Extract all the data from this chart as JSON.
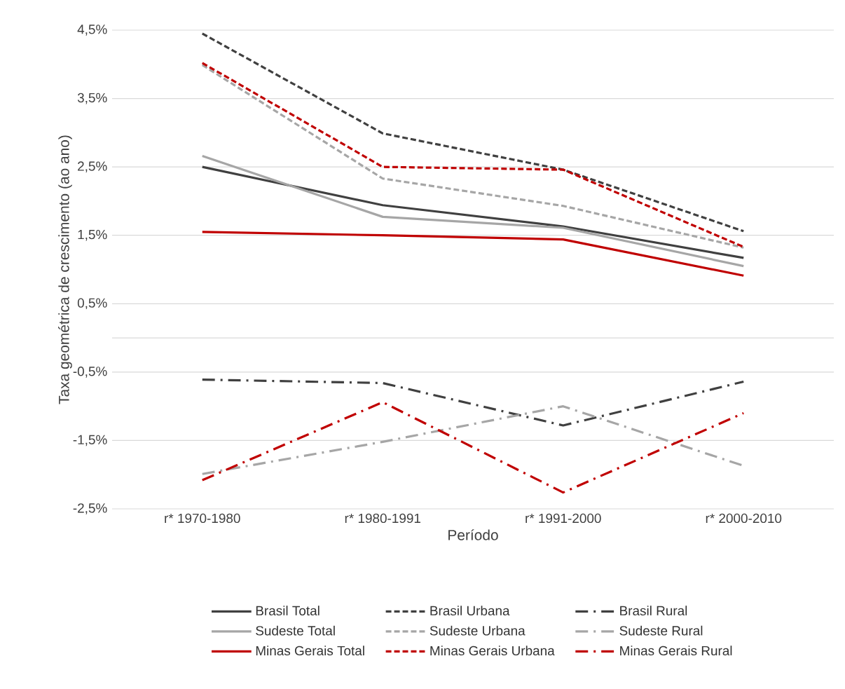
{
  "chart_data": {
    "type": "line",
    "xlabel": "Período",
    "ylabel": "Taxa geométrica de crescimento (ao ano)",
    "categories": [
      "r* 1970-1980",
      "r* 1980-1991",
      "r* 1991-2000",
      "r* 2000-2010"
    ],
    "ylim": [
      -2.5,
      4.5
    ],
    "yticks": [
      {
        "value": -2.5,
        "label": "-2,5%"
      },
      {
        "value": -1.5,
        "label": "-1,5%"
      },
      {
        "value": -0.5,
        "label": "-0,5%"
      },
      {
        "value": 0,
        "label": null
      },
      {
        "value": 0.5,
        "label": "0,5%"
      },
      {
        "value": 1.5,
        "label": "1,5%"
      },
      {
        "value": 2.5,
        "label": "2,5%"
      },
      {
        "value": 3.5,
        "label": "3,5%"
      },
      {
        "value": 4.5,
        "label": "4,5%"
      }
    ],
    "grid": "y",
    "legend": "bottom",
    "marker": "none",
    "series": [
      {
        "name": "Brasil Total",
        "color": "#404040",
        "line_style": "solid",
        "values": [
          2.5,
          1.94,
          1.63,
          1.17
        ]
      },
      {
        "name": "Brasil Urbana",
        "color": "#404040",
        "line_style": "dashed",
        "values": [
          4.45,
          2.99,
          2.46,
          1.56
        ]
      },
      {
        "name": "Brasil Rural",
        "color": "#404040",
        "line_style": "dashdot",
        "values": [
          -0.61,
          -0.66,
          -1.28,
          -0.64
        ]
      },
      {
        "name": "Sudeste Total",
        "color": "#a6a6a6",
        "line_style": "solid",
        "values": [
          2.66,
          1.77,
          1.61,
          1.05
        ]
      },
      {
        "name": "Sudeste Urbana",
        "color": "#a6a6a6",
        "line_style": "dashed",
        "values": [
          3.99,
          2.33,
          1.93,
          1.32
        ]
      },
      {
        "name": "Sudeste Rural",
        "color": "#a6a6a6",
        "line_style": "dashdot",
        "values": [
          -1.99,
          -1.52,
          -1.0,
          -1.87
        ]
      },
      {
        "name": "Minas Gerais Total",
        "color": "#c00000",
        "line_style": "solid",
        "values": [
          1.55,
          1.5,
          1.44,
          0.91
        ]
      },
      {
        "name": "Minas Gerais Urbana",
        "color": "#c00000",
        "line_style": "dashed",
        "values": [
          4.02,
          2.5,
          2.46,
          1.33
        ]
      },
      {
        "name": "Minas Gerais Rural",
        "color": "#c00000",
        "line_style": "dashdot",
        "values": [
          -2.08,
          -0.94,
          -2.26,
          -1.1
        ]
      }
    ]
  }
}
